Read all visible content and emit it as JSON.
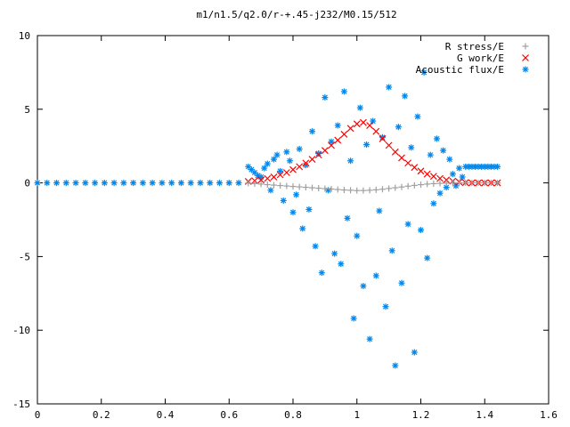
{
  "chart_data": {
    "type": "scatter",
    "title": "m1/n1.5/q2.0/r-+.45-j232/M0.15/512",
    "xlabel": "",
    "ylabel": "",
    "xlim": [
      0,
      1.6
    ],
    "ylim": [
      -15,
      10
    ],
    "xticks": [
      "0",
      "0.2",
      "0.4",
      "0.6",
      "0.8",
      "1",
      "1.2",
      "1.4",
      "1.6"
    ],
    "yticks": [
      "10",
      "5",
      "0",
      "-5",
      "-10",
      "-15"
    ],
    "grid": false,
    "legend_position": "top-right",
    "series": [
      {
        "name": "R stress/E",
        "marker": "+",
        "color": "#a0a0a0",
        "points": [
          [
            0.66,
            -0.02
          ],
          [
            0.68,
            -0.05
          ],
          [
            0.7,
            -0.08
          ],
          [
            0.72,
            -0.12
          ],
          [
            0.74,
            -0.15
          ],
          [
            0.76,
            -0.18
          ],
          [
            0.78,
            -0.21
          ],
          [
            0.8,
            -0.24
          ],
          [
            0.82,
            -0.27
          ],
          [
            0.84,
            -0.3
          ],
          [
            0.86,
            -0.33
          ],
          [
            0.88,
            -0.36
          ],
          [
            0.9,
            -0.39
          ],
          [
            0.92,
            -0.42
          ],
          [
            0.94,
            -0.45
          ],
          [
            0.96,
            -0.48
          ],
          [
            0.98,
            -0.5
          ],
          [
            1.0,
            -0.52
          ],
          [
            1.02,
            -0.52
          ],
          [
            1.04,
            -0.5
          ],
          [
            1.06,
            -0.47
          ],
          [
            1.08,
            -0.43
          ],
          [
            1.1,
            -0.38
          ],
          [
            1.12,
            -0.33
          ],
          [
            1.14,
            -0.28
          ],
          [
            1.16,
            -0.22
          ],
          [
            1.18,
            -0.17
          ],
          [
            1.2,
            -0.12
          ],
          [
            1.22,
            -0.08
          ],
          [
            1.24,
            -0.05
          ],
          [
            1.26,
            -0.03
          ],
          [
            1.28,
            -0.02
          ],
          [
            1.3,
            -0.01
          ],
          [
            1.32,
            0.0
          ],
          [
            1.34,
            0.0
          ],
          [
            1.36,
            0.0
          ],
          [
            1.38,
            0.0
          ],
          [
            1.4,
            0.0
          ],
          [
            1.42,
            0.0
          ],
          [
            1.44,
            0.0
          ]
        ]
      },
      {
        "name": "G work/E",
        "marker": "x",
        "color": "#ff0000",
        "points": [
          [
            0.66,
            0.1
          ],
          [
            0.68,
            0.15
          ],
          [
            0.7,
            0.2
          ],
          [
            0.72,
            0.3
          ],
          [
            0.74,
            0.4
          ],
          [
            0.76,
            0.55
          ],
          [
            0.78,
            0.7
          ],
          [
            0.8,
            0.9
          ],
          [
            0.82,
            1.1
          ],
          [
            0.84,
            1.35
          ],
          [
            0.86,
            1.6
          ],
          [
            0.88,
            1.9
          ],
          [
            0.9,
            2.2
          ],
          [
            0.92,
            2.55
          ],
          [
            0.94,
            2.9
          ],
          [
            0.96,
            3.3
          ],
          [
            0.98,
            3.7
          ],
          [
            1.0,
            4.0
          ],
          [
            1.02,
            4.1
          ],
          [
            1.04,
            3.9
          ],
          [
            1.06,
            3.5
          ],
          [
            1.08,
            3.0
          ],
          [
            1.1,
            2.55
          ],
          [
            1.12,
            2.1
          ],
          [
            1.14,
            1.7
          ],
          [
            1.16,
            1.35
          ],
          [
            1.18,
            1.05
          ],
          [
            1.2,
            0.8
          ],
          [
            1.22,
            0.6
          ],
          [
            1.24,
            0.45
          ],
          [
            1.26,
            0.3
          ],
          [
            1.28,
            0.2
          ],
          [
            1.3,
            0.12
          ],
          [
            1.32,
            0.06
          ],
          [
            1.34,
            0.02
          ],
          [
            1.36,
            0.0
          ],
          [
            1.38,
            0.0
          ],
          [
            1.4,
            0.0
          ],
          [
            1.42,
            0.0
          ],
          [
            1.44,
            0.0
          ]
        ]
      },
      {
        "name": "Acoustic flux/E",
        "marker": "*",
        "color": "#0088ee",
        "points": [
          [
            0.0,
            0.0
          ],
          [
            0.03,
            0.0
          ],
          [
            0.06,
            0.0
          ],
          [
            0.09,
            0.0
          ],
          [
            0.12,
            0.0
          ],
          [
            0.15,
            0.0
          ],
          [
            0.18,
            0.0
          ],
          [
            0.21,
            0.0
          ],
          [
            0.24,
            0.0
          ],
          [
            0.27,
            0.0
          ],
          [
            0.3,
            0.0
          ],
          [
            0.33,
            0.0
          ],
          [
            0.36,
            0.0
          ],
          [
            0.39,
            0.0
          ],
          [
            0.42,
            0.0
          ],
          [
            0.45,
            0.0
          ],
          [
            0.48,
            0.0
          ],
          [
            0.51,
            0.0
          ],
          [
            0.54,
            0.0
          ],
          [
            0.57,
            0.0
          ],
          [
            0.6,
            0.0
          ],
          [
            0.63,
            0.0
          ],
          [
            0.66,
            1.1
          ],
          [
            0.67,
            0.9
          ],
          [
            0.68,
            0.7
          ],
          [
            0.69,
            0.5
          ],
          [
            0.7,
            0.4
          ],
          [
            0.71,
            1.0
          ],
          [
            0.72,
            1.3
          ],
          [
            0.73,
            -0.5
          ],
          [
            0.74,
            1.6
          ],
          [
            0.75,
            1.9
          ],
          [
            0.76,
            0.8
          ],
          [
            0.77,
            -1.2
          ],
          [
            0.78,
            2.1
          ],
          [
            0.79,
            1.5
          ],
          [
            0.8,
            -2.0
          ],
          [
            0.81,
            -0.8
          ],
          [
            0.82,
            2.3
          ],
          [
            0.83,
            -3.1
          ],
          [
            0.84,
            1.2
          ],
          [
            0.85,
            -1.8
          ],
          [
            0.86,
            3.5
          ],
          [
            0.87,
            -4.3
          ],
          [
            0.88,
            2.0
          ],
          [
            0.89,
            -6.1
          ],
          [
            0.9,
            5.8
          ],
          [
            0.91,
            -0.5
          ],
          [
            0.92,
            2.8
          ],
          [
            0.93,
            -4.8
          ],
          [
            0.94,
            3.9
          ],
          [
            0.95,
            -5.5
          ],
          [
            0.96,
            6.2
          ],
          [
            0.97,
            -2.4
          ],
          [
            0.98,
            1.5
          ],
          [
            0.99,
            -9.2
          ],
          [
            1.0,
            -3.6
          ],
          [
            1.01,
            5.1
          ],
          [
            1.02,
            -7.0
          ],
          [
            1.03,
            2.6
          ],
          [
            1.04,
            -10.6
          ],
          [
            1.05,
            4.2
          ],
          [
            1.06,
            -6.3
          ],
          [
            1.07,
            -1.9
          ],
          [
            1.08,
            3.1
          ],
          [
            1.09,
            -8.4
          ],
          [
            1.1,
            6.5
          ],
          [
            1.11,
            -4.6
          ],
          [
            1.12,
            -12.4
          ],
          [
            1.13,
            3.8
          ],
          [
            1.14,
            -6.8
          ],
          [
            1.15,
            5.9
          ],
          [
            1.16,
            -2.8
          ],
          [
            1.17,
            2.4
          ],
          [
            1.18,
            -11.5
          ],
          [
            1.19,
            4.5
          ],
          [
            1.2,
            -3.2
          ],
          [
            1.21,
            7.5
          ],
          [
            1.22,
            -5.1
          ],
          [
            1.23,
            1.9
          ],
          [
            1.24,
            -1.4
          ],
          [
            1.25,
            3.0
          ],
          [
            1.26,
            -0.7
          ],
          [
            1.27,
            2.2
          ],
          [
            1.28,
            -0.3
          ],
          [
            1.29,
            1.6
          ],
          [
            1.3,
            0.6
          ],
          [
            1.31,
            -0.2
          ],
          [
            1.32,
            1.0
          ],
          [
            1.33,
            0.4
          ],
          [
            1.34,
            1.1
          ],
          [
            1.35,
            1.1
          ],
          [
            1.36,
            1.1
          ],
          [
            1.37,
            1.1
          ],
          [
            1.38,
            1.1
          ],
          [
            1.39,
            1.1
          ],
          [
            1.4,
            1.1
          ],
          [
            1.41,
            1.1
          ],
          [
            1.42,
            1.1
          ],
          [
            1.43,
            1.1
          ],
          [
            1.44,
            1.1
          ]
        ]
      }
    ]
  }
}
